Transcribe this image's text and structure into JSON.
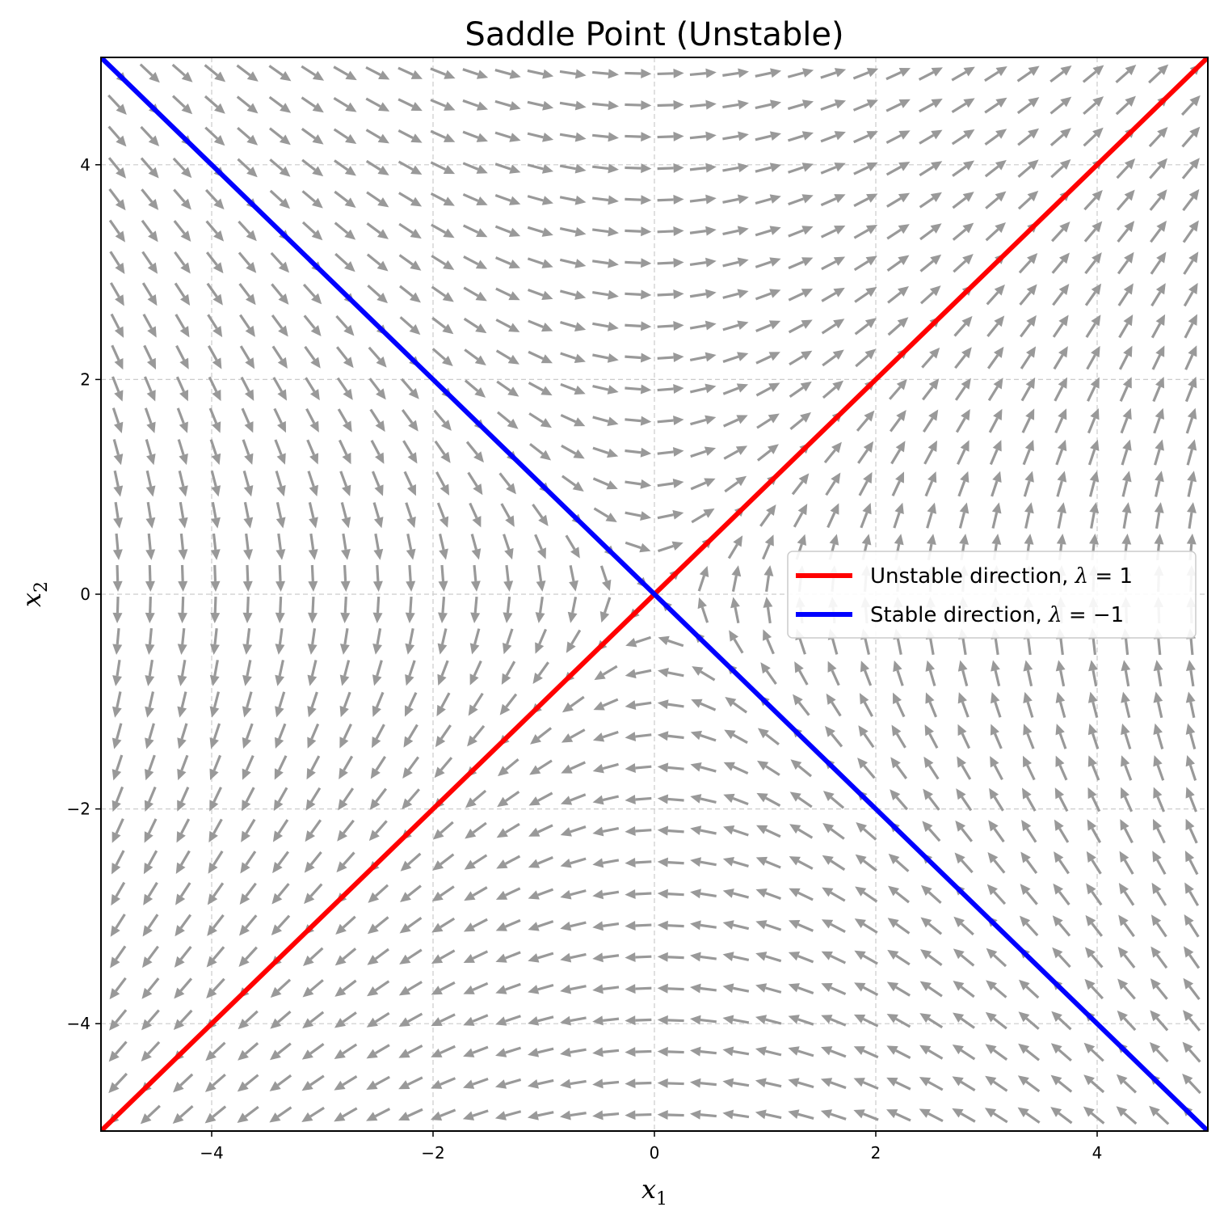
{
  "chart_data": {
    "type": "quiver",
    "title": "Saddle Point (Unstable)",
    "xlabel": "x",
    "xlabel_sub": "1",
    "ylabel": "x",
    "ylabel_sub": "2",
    "xlim": [
      -5,
      5
    ],
    "ylim": [
      -5,
      5
    ],
    "xticks": [
      -4,
      -2,
      0,
      2,
      4
    ],
    "yticks": [
      -4,
      -2,
      0,
      2,
      4
    ],
    "xtick_labels": [
      "−4",
      "−2",
      "0",
      "2",
      "4"
    ],
    "ytick_labels": [
      "−4",
      "−2",
      "0",
      "2",
      "4"
    ],
    "grid": true,
    "legend_position": "center-right",
    "vector_field": {
      "system": "dx1/dt = x2, dx2/dt = x1",
      "grid_count": 34,
      "range": [
        -4.85,
        4.85
      ],
      "normalized": true,
      "color": "#999999"
    },
    "series": [
      {
        "name": "Unstable direction, λ = 1",
        "name_parts": {
          "text": "Unstable direction, ",
          "symbol": "λ",
          "rest": " = 1"
        },
        "color": "#ff0000",
        "points": [
          [
            -5,
            -5
          ],
          [
            5,
            5
          ]
        ]
      },
      {
        "name": "Stable direction, λ = −1",
        "name_parts": {
          "text": "Stable direction, ",
          "symbol": "λ",
          "rest": " = −1"
        },
        "color": "#0000ff",
        "points": [
          [
            -5,
            5
          ],
          [
            5,
            -5
          ]
        ]
      }
    ]
  }
}
